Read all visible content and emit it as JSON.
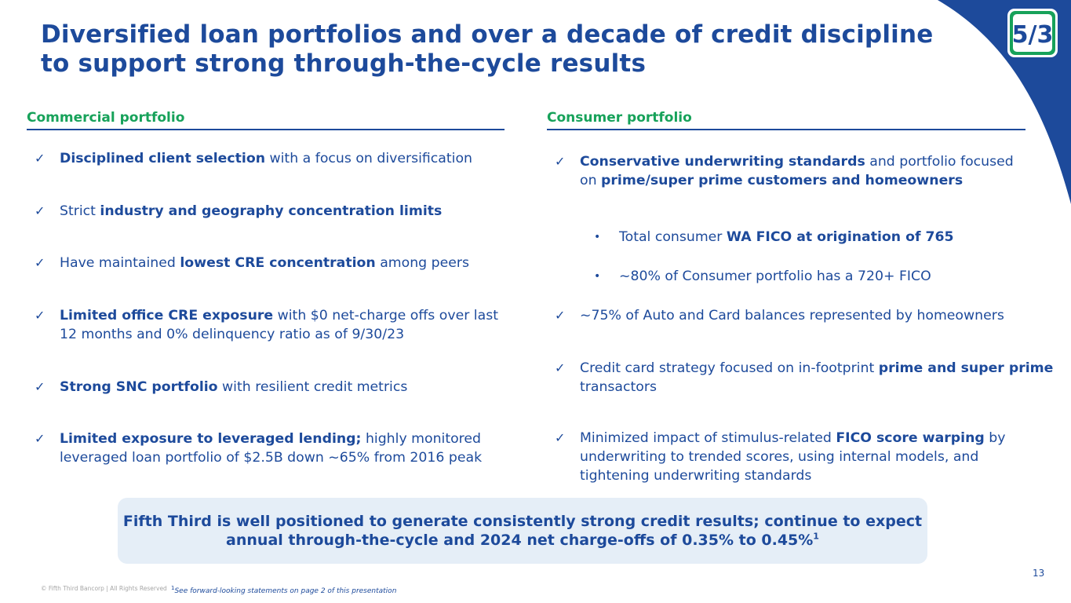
{
  "title": "Diversified loan portfolios and over a decade of credit discipline to support strong through-the-cycle results",
  "logo": {
    "icon": "fifth-third-logo-icon",
    "text": "5/3"
  },
  "colors": {
    "brand_blue": "#1d4a9b",
    "accent_green": "#17a25a",
    "callout_bg": "#e5eef7"
  },
  "commercial": {
    "heading": "Commercial portfolio",
    "items": [
      {
        "bold": "Disciplined client selection",
        "after": " with a focus on diversification"
      },
      {
        "before": "Strict ",
        "bold": "industry and geography concentration limits"
      },
      {
        "before": "Have maintained ",
        "bold": "lowest CRE concentration",
        "after": " among peers"
      },
      {
        "bold": "Limited office CRE exposure",
        "after": " with $0 net-charge offs over last 12 months and 0% delinquency ratio as of 9/30/23"
      },
      {
        "bold": "Strong SNC portfolio",
        "after": " with resilient credit metrics"
      },
      {
        "bold": "Limited exposure to leveraged lending;",
        "after": " highly monitored leveraged loan portfolio of $2.5B down ~65% from 2016 peak"
      }
    ]
  },
  "consumer": {
    "heading": "Consumer portfolio",
    "item1": {
      "bold1": "Conservative underwriting standards",
      "mid": " and portfolio focused on ",
      "bold2": "prime/super prime customers and homeowners"
    },
    "sub1": {
      "before": "Total consumer ",
      "bold": "WA FICO at origination of 765"
    },
    "sub2": {
      "text": "~80% of Consumer portfolio has a 720+ FICO"
    },
    "item2": {
      "text": "~75% of Auto and Card balances represented by homeowners"
    },
    "item3": {
      "before": "Credit card strategy focused on in-footprint ",
      "bold": "prime and super prime",
      "after": " transactors"
    },
    "item4": {
      "before": "Minimized impact of stimulus-related ",
      "bold": "FICO score warping",
      "after": " by underwriting to trended scores, using internal models, and tightening underwriting standards"
    }
  },
  "callout": {
    "text": "Fifth Third is well positioned to generate consistently strong credit results; continue to expect annual through-the-cycle and 2024 net charge-offs of 0.35% to 0.45%",
    "sup": "1"
  },
  "footer": {
    "copyright": "© Fifth Third Bancorp | All Rights Reserved",
    "footnote_sup": "1",
    "footnote": "See forward-looking statements on page 2 of this presentation",
    "page_number": "13"
  }
}
